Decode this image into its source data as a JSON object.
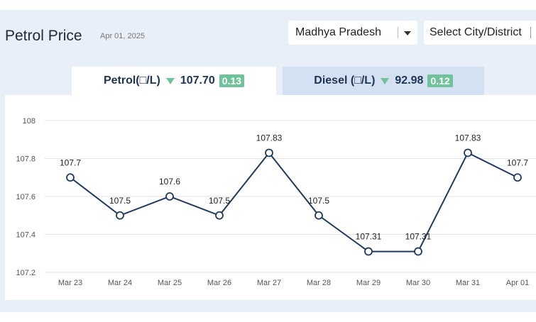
{
  "header": {
    "title": "Petrol Price",
    "date": "Apr 01, 2025",
    "state_select": "Madhya Pradesh",
    "city_select": "Select City/District"
  },
  "tabs": {
    "petrol": {
      "label": "Petrol(□/L)",
      "price": "107.70",
      "change": "0.13"
    },
    "diesel": {
      "label": "Diesel (□/L)",
      "price": "92.98",
      "change": "0.12"
    }
  },
  "colors": {
    "line": "#1f3a5c",
    "badge": "#6fc29a",
    "active_tab": "#ffffff",
    "inactive_tab": "#d3e1f3"
  },
  "icons": {
    "state_caret": "chevron-down-icon",
    "trend": "down-triangle-icon"
  },
  "chart_data": {
    "type": "line",
    "categories": [
      "Mar 23",
      "Mar 24",
      "Mar 25",
      "Mar 26",
      "Mar 27",
      "Mar 28",
      "Mar 29",
      "Mar 30",
      "Mar 31",
      "Apr 01"
    ],
    "values": [
      107.7,
      107.5,
      107.6,
      107.5,
      107.83,
      107.5,
      107.31,
      107.31,
      107.83,
      107.7
    ],
    "data_labels": [
      "107.7",
      "107.5",
      "107.6",
      "107.5",
      "107.83",
      "107.5",
      "107.31",
      "107.31",
      "107.83",
      "107.7"
    ],
    "ylim": [
      107.2,
      108
    ],
    "yticks": [
      "108",
      "107.8",
      "107.6",
      "107.4",
      "107.2"
    ],
    "title": "",
    "xlabel": "",
    "ylabel": "",
    "grid": true
  }
}
